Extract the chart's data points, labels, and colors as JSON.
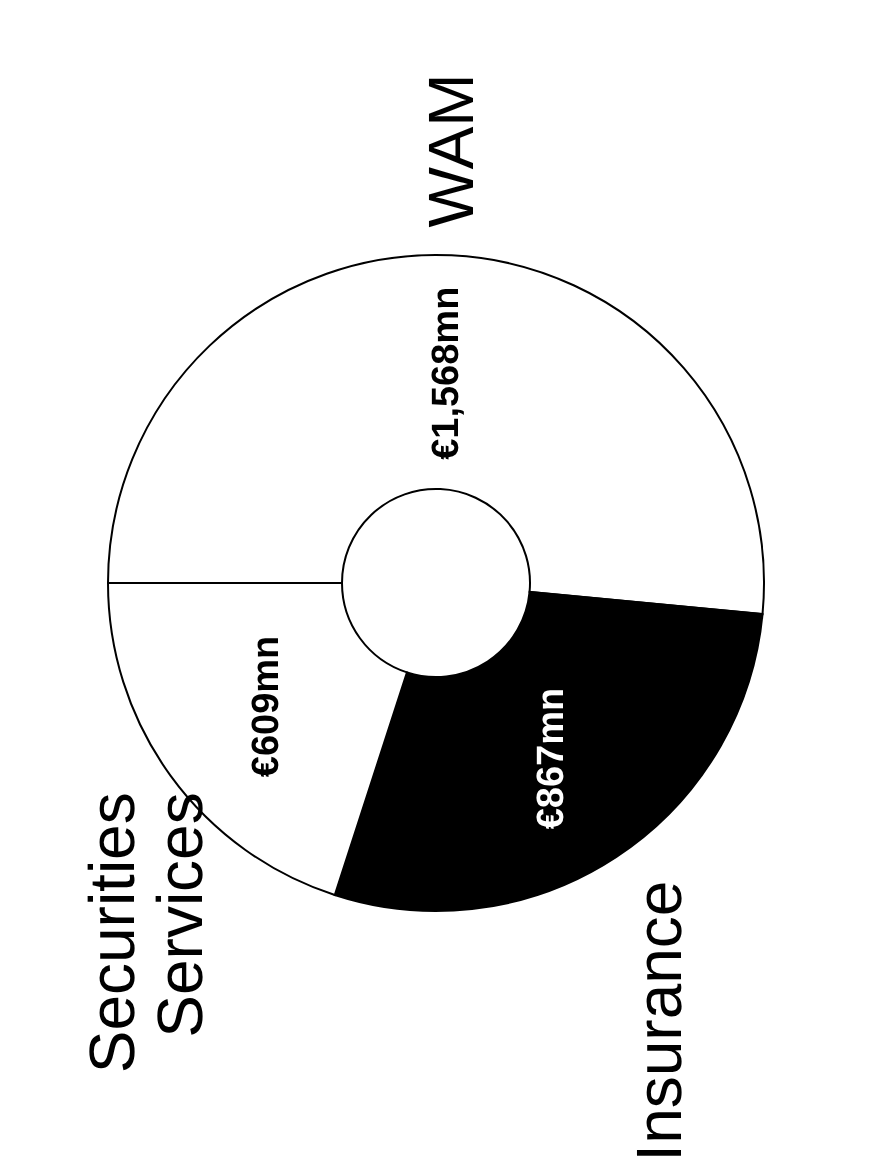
{
  "chart_data": {
    "type": "donut",
    "categories": [
      "WAM",
      "Insurance",
      "Securities Services"
    ],
    "values": [
      1568,
      867,
      609
    ],
    "colors": [
      "#ffffff",
      "#000000",
      "#ffffff"
    ],
    "value_labels": [
      "€1,568mn",
      "€867mn",
      "€609mn"
    ],
    "legend": false
  }
}
